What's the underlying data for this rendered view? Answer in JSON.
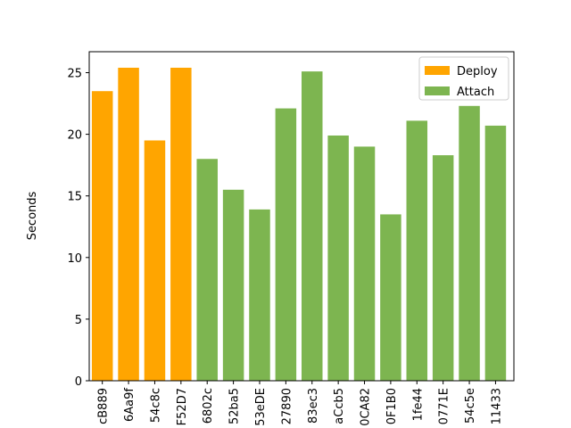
{
  "chart_data": {
    "type": "bar",
    "ylabel": "Seconds",
    "categories": [
      "cB889",
      "6Aa9f",
      "54c8c",
      "F52D7",
      "6802c",
      "52ba5",
      "53eDE",
      "27890",
      "83ec3",
      "aCcb5",
      "0CA82",
      "0F1B0",
      "1fe44",
      "0771E",
      "54c5e",
      "11433"
    ],
    "series": [
      {
        "name": "Deploy",
        "color": "#ffa500",
        "values": [
          23.5,
          25.4,
          19.5,
          25.4,
          null,
          null,
          null,
          null,
          null,
          null,
          null,
          null,
          null,
          null,
          null,
          null
        ]
      },
      {
        "name": "Attach",
        "color": "#7db550",
        "values": [
          null,
          null,
          null,
          null,
          18.0,
          15.5,
          13.9,
          22.1,
          25.1,
          19.9,
          19.0,
          13.5,
          21.1,
          18.3,
          22.3,
          20.7
        ]
      }
    ],
    "ylim": [
      0,
      26.7
    ],
    "yticks": [
      0,
      5,
      10,
      15,
      20,
      25
    ],
    "legend": "upper right"
  }
}
